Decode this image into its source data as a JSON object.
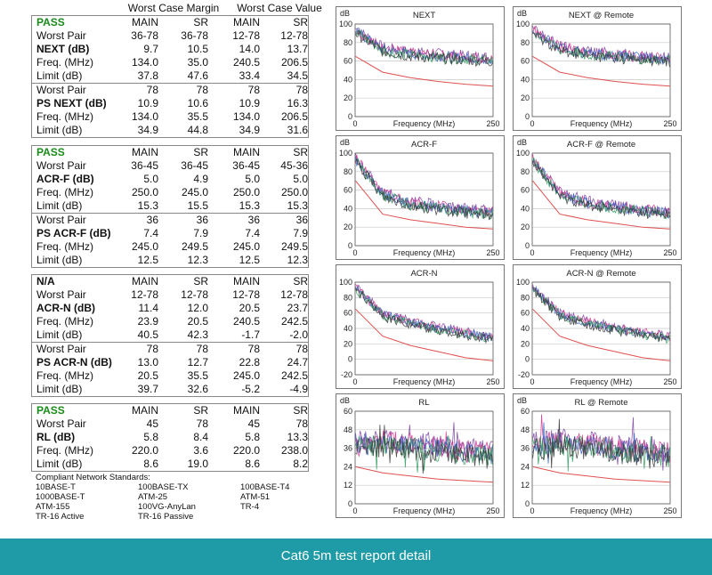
{
  "header": {
    "margin_title": "Worst Case Margin",
    "value_title": "Worst Case Value"
  },
  "tables": [
    {
      "status": "PASS",
      "status_color": "#1a8a1a",
      "cols": [
        "MAIN",
        "SR",
        "MAIN",
        "SR"
      ],
      "rows": [
        {
          "label": "Worst Pair",
          "vals": [
            "36-78",
            "36-78",
            "12-78",
            "12-78"
          ]
        },
        {
          "label": "NEXT (dB)",
          "vals": [
            "9.7",
            "10.5",
            "14.0",
            "13.7"
          ],
          "bold": true
        },
        {
          "label": "Freq. (MHz)",
          "vals": [
            "134.0",
            "35.0",
            "240.5",
            "206.5"
          ]
        },
        {
          "label": "Limit (dB)",
          "vals": [
            "37.8",
            "47.6",
            "33.4",
            "34.5"
          ]
        },
        {
          "label": "Worst Pair",
          "vals": [
            "78",
            "78",
            "78",
            "78"
          ],
          "sep": true
        },
        {
          "label": "PS NEXT (dB)",
          "vals": [
            "10.9",
            "10.6",
            "10.9",
            "16.3"
          ],
          "bold": true
        },
        {
          "label": "Freq. (MHz)",
          "vals": [
            "134.0",
            "35.5",
            "134.0",
            "206.5"
          ]
        },
        {
          "label": "Limit (dB)",
          "vals": [
            "34.9",
            "44.8",
            "34.9",
            "31.6"
          ]
        }
      ]
    },
    {
      "status": "PASS",
      "status_color": "#1a8a1a",
      "cols": [
        "MAIN",
        "SR",
        "MAIN",
        "SR"
      ],
      "rows": [
        {
          "label": "Worst Pair",
          "vals": [
            "36-45",
            "36-45",
            "36-45",
            "45-36"
          ]
        },
        {
          "label": "ACR-F (dB)",
          "vals": [
            "5.0",
            "4.9",
            "5.0",
            "5.0"
          ],
          "bold": true
        },
        {
          "label": "Freq. (MHz)",
          "vals": [
            "250.0",
            "245.0",
            "250.0",
            "250.0"
          ]
        },
        {
          "label": "Limit (dB)",
          "vals": [
            "15.3",
            "15.5",
            "15.3",
            "15.3"
          ]
        },
        {
          "label": "Worst Pair",
          "vals": [
            "36",
            "36",
            "36",
            "36"
          ],
          "sep": true
        },
        {
          "label": "PS ACR-F (dB)",
          "vals": [
            "7.4",
            "7.9",
            "7.4",
            "7.9"
          ],
          "bold": true
        },
        {
          "label": "Freq. (MHz)",
          "vals": [
            "245.0",
            "249.5",
            "245.0",
            "249.5"
          ]
        },
        {
          "label": "Limit (dB)",
          "vals": [
            "12.5",
            "12.3",
            "12.5",
            "12.3"
          ]
        }
      ]
    },
    {
      "status": "N/A",
      "status_color": "#111111",
      "cols": [
        "MAIN",
        "SR",
        "MAIN",
        "SR"
      ],
      "rows": [
        {
          "label": "Worst Pair",
          "vals": [
            "12-78",
            "12-78",
            "12-78",
            "12-78"
          ]
        },
        {
          "label": "ACR-N (dB)",
          "vals": [
            "11.4",
            "12.0",
            "20.5",
            "23.7"
          ],
          "bold": true
        },
        {
          "label": "Freq. (MHz)",
          "vals": [
            "23.9",
            "20.5",
            "240.5",
            "242.5"
          ]
        },
        {
          "label": "Limit (dB)",
          "vals": [
            "40.5",
            "42.3",
            "-1.7",
            "-2.0"
          ]
        },
        {
          "label": "Worst Pair",
          "vals": [
            "78",
            "78",
            "78",
            "78"
          ],
          "sep": true
        },
        {
          "label": "PS ACR-N (dB)",
          "vals": [
            "13.0",
            "12.7",
            "22.8",
            "24.7"
          ],
          "bold": true
        },
        {
          "label": "Freq. (MHz)",
          "vals": [
            "20.5",
            "35.5",
            "245.0",
            "242.5"
          ]
        },
        {
          "label": "Limit (dB)",
          "vals": [
            "39.7",
            "32.6",
            "-5.2",
            "-4.9"
          ]
        }
      ]
    },
    {
      "status": "PASS",
      "status_color": "#1a8a1a",
      "cols": [
        "MAIN",
        "SR",
        "MAIN",
        "SR"
      ],
      "rows": [
        {
          "label": "Worst Pair",
          "vals": [
            "45",
            "78",
            "45",
            "78"
          ]
        },
        {
          "label": "RL (dB)",
          "vals": [
            "5.8",
            "8.4",
            "5.8",
            "13.3"
          ],
          "bold": true
        },
        {
          "label": "Freq. (MHz)",
          "vals": [
            "220.0",
            "3.6",
            "220.0",
            "238.0"
          ]
        },
        {
          "label": "Limit (dB)",
          "vals": [
            "8.6",
            "19.0",
            "8.6",
            "8.2"
          ]
        }
      ]
    }
  ],
  "standards": {
    "title": "Compliant Network Standards:",
    "items": [
      "10BASE-T",
      "100BASE-TX",
      "100BASE-T4",
      "1000BASE-T",
      "ATM-25",
      "ATM-51",
      "ATM-155",
      "100VG-AnyLan",
      "TR-4",
      "TR-16 Active",
      "TR-16 Passive"
    ]
  },
  "chart_data": [
    {
      "type": "line",
      "title": "NEXT",
      "ylabel": "dB",
      "xlabel": "Frequency (MHz)",
      "xlim": [
        0,
        250
      ],
      "ylim": [
        0,
        100
      ],
      "yticks": [
        0,
        20,
        40,
        60,
        80,
        100
      ],
      "xticks": [
        0,
        250
      ],
      "series": [
        {
          "values": [
            [
              1,
              95
            ],
            [
              50,
              75
            ],
            [
              100,
              70
            ],
            [
              150,
              68
            ],
            [
              200,
              66
            ],
            [
              250,
              64
            ]
          ]
        },
        {
          "values": [
            [
              1,
              65
            ],
            [
              50,
              48
            ],
            [
              100,
              42
            ],
            [
              150,
              38
            ],
            [
              200,
              35
            ],
            [
              250,
              33
            ]
          ]
        }
      ]
    },
    {
      "type": "line",
      "title": "NEXT @ Remote",
      "ylabel": "dB",
      "xlabel": "Frequency (MHz)",
      "xlim": [
        0,
        250
      ],
      "ylim": [
        0,
        100
      ],
      "yticks": [
        0,
        20,
        40,
        60,
        80,
        100
      ],
      "xticks": [
        0,
        250
      ],
      "series": [
        {
          "values": [
            [
              1,
              95
            ],
            [
              50,
              76
            ],
            [
              100,
              71
            ],
            [
              150,
              68
            ],
            [
              200,
              66
            ],
            [
              250,
              64
            ]
          ]
        },
        {
          "values": [
            [
              1,
              65
            ],
            [
              50,
              48
            ],
            [
              100,
              42
            ],
            [
              150,
              38
            ],
            [
              200,
              35
            ],
            [
              250,
              33
            ]
          ]
        }
      ]
    },
    {
      "type": "line",
      "title": "ACR-F",
      "ylabel": "dB",
      "xlabel": "Frequency (MHz)",
      "xlim": [
        0,
        250
      ],
      "ylim": [
        0,
        100
      ],
      "yticks": [
        0,
        20,
        40,
        60,
        80,
        100
      ],
      "xticks": [
        0,
        250
      ],
      "series": [
        {
          "values": [
            [
              1,
              95
            ],
            [
              50,
              58
            ],
            [
              100,
              48
            ],
            [
              150,
              44
            ],
            [
              200,
              40
            ],
            [
              250,
              38
            ]
          ]
        },
        {
          "values": [
            [
              1,
              70
            ],
            [
              50,
              34
            ],
            [
              100,
              28
            ],
            [
              150,
              24
            ],
            [
              200,
              20
            ],
            [
              250,
              18
            ]
          ]
        }
      ]
    },
    {
      "type": "line",
      "title": "ACR-F @ Remote",
      "ylabel": "dB",
      "xlabel": "Frequency (MHz)",
      "xlim": [
        0,
        250
      ],
      "ylim": [
        0,
        100
      ],
      "yticks": [
        0,
        20,
        40,
        60,
        80,
        100
      ],
      "xticks": [
        0,
        250
      ],
      "series": [
        {
          "values": [
            [
              1,
              95
            ],
            [
              50,
              58
            ],
            [
              100,
              48
            ],
            [
              150,
              44
            ],
            [
              200,
              40
            ],
            [
              250,
              38
            ]
          ]
        },
        {
          "values": [
            [
              1,
              70
            ],
            [
              50,
              34
            ],
            [
              100,
              28
            ],
            [
              150,
              24
            ],
            [
              200,
              20
            ],
            [
              250,
              18
            ]
          ]
        }
      ]
    },
    {
      "type": "line",
      "title": "ACR-N",
      "ylabel": "",
      "xlabel": "Frequency (MHz)",
      "xlim": [
        0,
        250
      ],
      "ylim": [
        -20,
        100
      ],
      "yticks": [
        -20,
        0,
        20,
        40,
        60,
        80,
        100
      ],
      "xticks": [
        0,
        250
      ],
      "series": [
        {
          "values": [
            [
              1,
              95
            ],
            [
              50,
              60
            ],
            [
              100,
              50
            ],
            [
              150,
              42
            ],
            [
              200,
              36
            ],
            [
              250,
              30
            ]
          ]
        },
        {
          "values": [
            [
              1,
              65
            ],
            [
              50,
              30
            ],
            [
              100,
              18
            ],
            [
              150,
              10
            ],
            [
              200,
              2
            ],
            [
              250,
              -2
            ]
          ]
        }
      ]
    },
    {
      "type": "line",
      "title": "ACR-N @ Remote",
      "ylabel": "",
      "xlabel": "Frequency (MHz)",
      "xlim": [
        0,
        250
      ],
      "ylim": [
        -20,
        100
      ],
      "yticks": [
        -20,
        0,
        20,
        40,
        60,
        80,
        100
      ],
      "xticks": [
        0,
        250
      ],
      "series": [
        {
          "values": [
            [
              1,
              95
            ],
            [
              50,
              60
            ],
            [
              100,
              50
            ],
            [
              150,
              42
            ],
            [
              200,
              36
            ],
            [
              250,
              30
            ]
          ]
        },
        {
          "values": [
            [
              1,
              65
            ],
            [
              50,
              30
            ],
            [
              100,
              18
            ],
            [
              150,
              10
            ],
            [
              200,
              2
            ],
            [
              250,
              -2
            ]
          ]
        }
      ]
    },
    {
      "type": "line",
      "title": "RL",
      "ylabel": "dB",
      "xlabel": "Frequency (MHz)",
      "xlim": [
        0,
        250
      ],
      "ylim": [
        0,
        60
      ],
      "yticks": [
        0,
        12,
        24,
        36,
        48,
        60
      ],
      "xticks": [
        0,
        250
      ],
      "series": [
        {
          "values": [
            [
              1,
              40
            ],
            [
              50,
              42
            ],
            [
              100,
              40
            ],
            [
              150,
              38
            ],
            [
              200,
              36
            ],
            [
              250,
              34
            ]
          ]
        },
        {
          "values": [
            [
              1,
              24
            ],
            [
              50,
              20
            ],
            [
              100,
              18
            ],
            [
              150,
              16
            ],
            [
              200,
              15
            ],
            [
              250,
              14
            ]
          ]
        }
      ]
    },
    {
      "type": "line",
      "title": "RL @ Remote",
      "ylabel": "dB",
      "xlabel": "Frequency (MHz)",
      "xlim": [
        0,
        250
      ],
      "ylim": [
        0,
        60
      ],
      "yticks": [
        0,
        12,
        24,
        36,
        48,
        60
      ],
      "xticks": [
        0,
        250
      ],
      "series": [
        {
          "values": [
            [
              1,
              40
            ],
            [
              50,
              42
            ],
            [
              100,
              40
            ],
            [
              150,
              38
            ],
            [
              200,
              36
            ],
            [
              250,
              34
            ]
          ]
        },
        {
          "values": [
            [
              1,
              24
            ],
            [
              50,
              20
            ],
            [
              100,
              18
            ],
            [
              150,
              16
            ],
            [
              200,
              15
            ],
            [
              250,
              14
            ]
          ]
        }
      ]
    }
  ],
  "colors": {
    "banner": "#1f9aa7",
    "limit": "#e05050",
    "pass": "#1a8a1a",
    "traces": [
      "#7a3fa0",
      "#d0308a",
      "#3060c0",
      "#2a9a5a",
      "#333333"
    ]
  },
  "banner": {
    "caption": "Cat6 5m test report detail"
  }
}
